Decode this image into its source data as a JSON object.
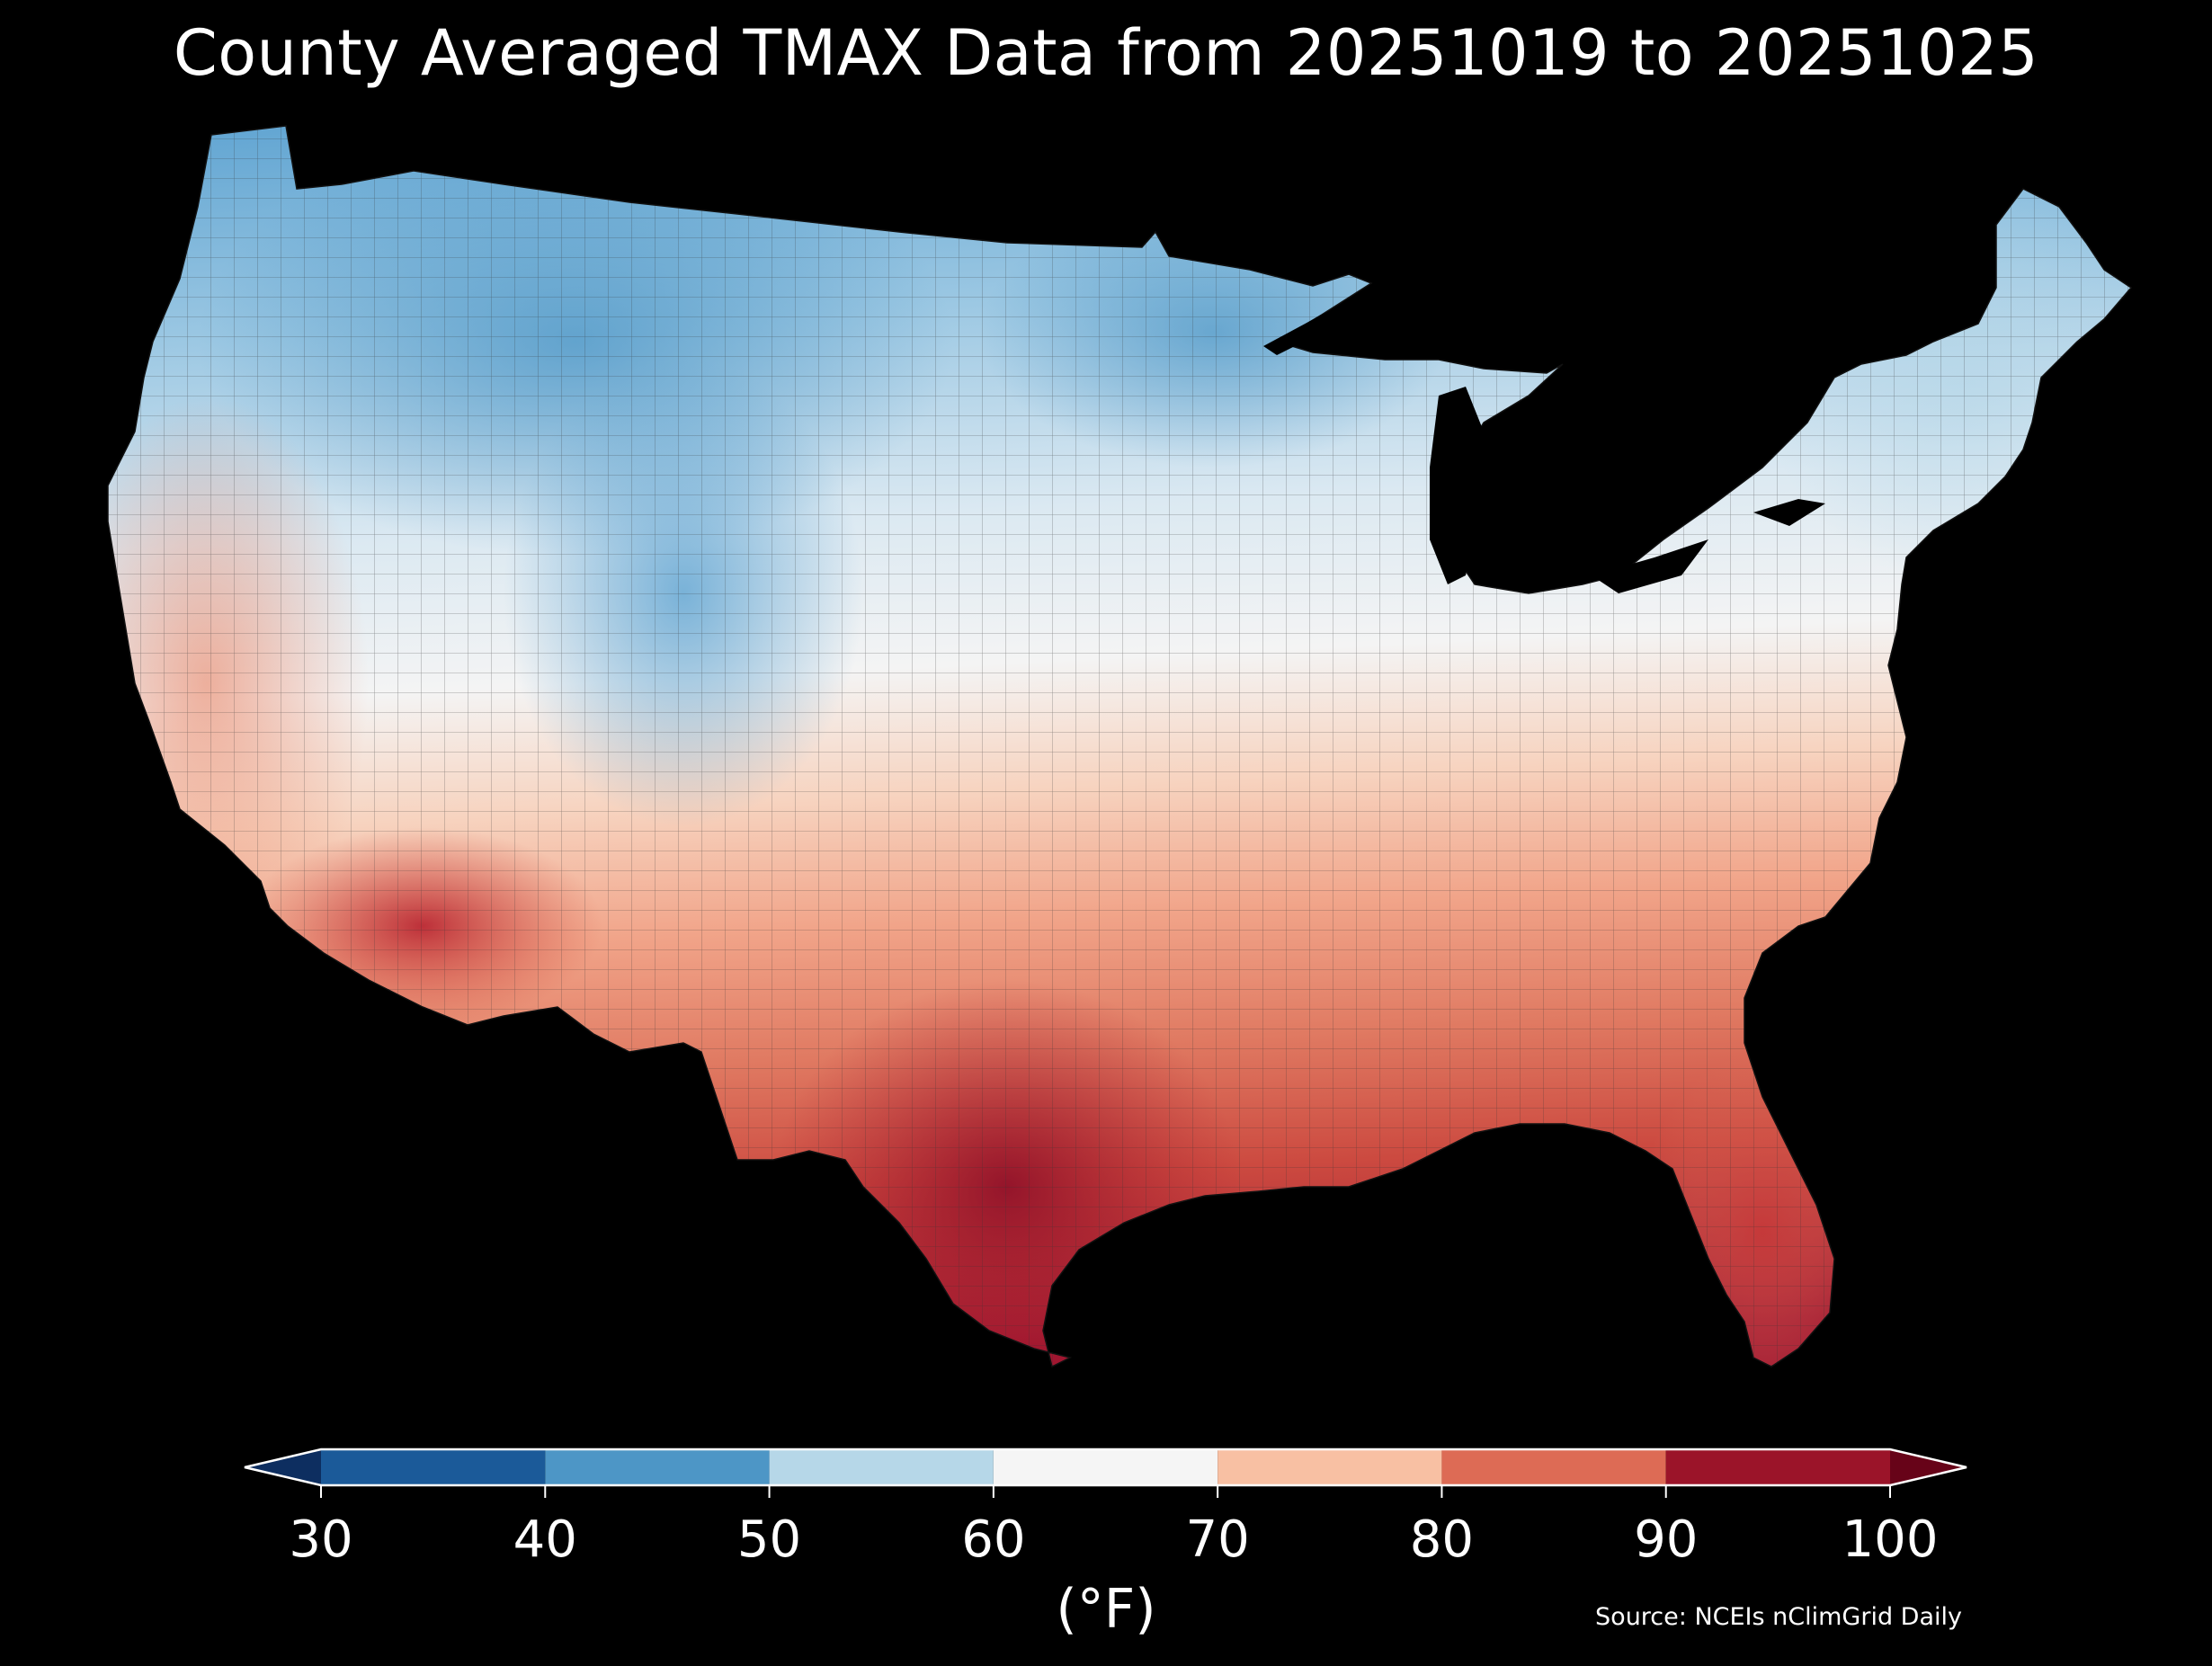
{
  "title": "County Averaged TMAX Data from 20251019 to 20251025",
  "colorbar": {
    "ticks": [
      "30",
      "40",
      "50",
      "60",
      "70",
      "80",
      "90",
      "100"
    ],
    "units": "(°F)",
    "bins": [
      {
        "from": 30,
        "to": 40,
        "color": "#1b5a99"
      },
      {
        "from": 40,
        "to": 50,
        "color": "#4d96c6"
      },
      {
        "from": 50,
        "to": 60,
        "color": "#b6d7e8"
      },
      {
        "from": 60,
        "to": 70,
        "color": "#f5f5f5"
      },
      {
        "from": 70,
        "to": 80,
        "color": "#f8c0a3"
      },
      {
        "from": 80,
        "to": 90,
        "color": "#dd6b55"
      },
      {
        "from": 90,
        "to": 100,
        "color": "#9b1429"
      }
    ],
    "under_color": "#0d2e60",
    "over_color": "#670318"
  },
  "source": "Source: NCEIs nClimGrid Daily",
  "map": {
    "region": "Contiguous United States",
    "variable": "TMAX",
    "gradient_colors": {
      "cold": "#5ea3d1",
      "cool": "#cfe3ef",
      "neutral": "#f3f3f3",
      "warm": "#f2b79c",
      "hot": "#d95a49",
      "hottest": "#a3142d"
    }
  }
}
